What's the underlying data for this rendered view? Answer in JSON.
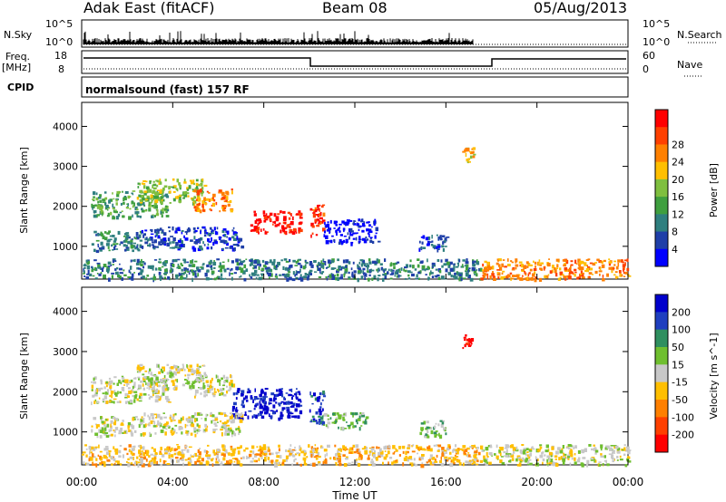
{
  "header": {
    "station": "Adak East (fitACF)",
    "beam": "Beam 08",
    "date": "05/Aug/2013"
  },
  "top_panels": {
    "nsky_label": "N.Sky",
    "nsky_ticks": [
      "10^5",
      "10^0"
    ],
    "nsearch_label": "N.Search",
    "nsearch_ticks": [
      "10^5",
      "10^0"
    ],
    "freq_label": "Freq.",
    "freq_unit": "[MHz]",
    "freq_ticks": [
      "18",
      "8"
    ],
    "nave_label": "Nave",
    "nave_ticks": [
      "60",
      "0"
    ],
    "cpid_label": "CPID",
    "cpid_value": "normalsound (fast) 157 RF"
  },
  "time_axis": {
    "label": "Time UT",
    "ticks": [
      "00:00",
      "04:00",
      "08:00",
      "12:00",
      "16:00",
      "20:00",
      "00:00"
    ]
  },
  "colors": {
    "power": [
      "#0000ff",
      "#1f3fa8",
      "#2f7f7f",
      "#3f9f3f",
      "#7fbf3f",
      "#ffbf00",
      "#ff8000",
      "#ff4000",
      "#ff0000"
    ],
    "velocity": [
      "#0000cc",
      "#1f3fbf",
      "#2f8f5f",
      "#6fbf2f",
      "#c8c8c8",
      "#ffbf00",
      "#ff8000",
      "#ff4000",
      "#ff0000"
    ]
  },
  "chart_data": [
    {
      "type": "heatmap",
      "name": "power",
      "title": "",
      "xlabel": "",
      "ylabel": "Slant Range [km]",
      "xlim": [
        0,
        24
      ],
      "ylim": [
        180,
        4600
      ],
      "y_ticks": [
        "1000",
        "2000",
        "3000",
        "4000"
      ],
      "colorbar": {
        "label": "Power [dB]",
        "ticks": [
          "4",
          "8",
          "12",
          "16",
          "20",
          "24",
          "28"
        ]
      },
      "regions": [
        {
          "t0": 0.4,
          "t1": 2.6,
          "r0": 900,
          "r1": 1400,
          "level": 2
        },
        {
          "t0": 0.4,
          "t1": 3.8,
          "r0": 1750,
          "r1": 2400,
          "level": 3
        },
        {
          "t0": 2.4,
          "t1": 5.4,
          "r0": 2100,
          "r1": 2700,
          "level": 4
        },
        {
          "t0": 4.9,
          "t1": 6.6,
          "r0": 1900,
          "r1": 2450,
          "level": 6
        },
        {
          "t0": 7.4,
          "t1": 9.6,
          "r0": 1350,
          "r1": 1900,
          "level": 8
        },
        {
          "t0": 10.0,
          "t1": 10.6,
          "r0": 1250,
          "r1": 2050,
          "level": 7
        },
        {
          "t0": 2.6,
          "t1": 7.0,
          "r0": 950,
          "r1": 1500,
          "level": 1
        },
        {
          "t0": 10.6,
          "t1": 13.0,
          "r0": 1100,
          "r1": 1700,
          "level": 0
        },
        {
          "t0": 14.8,
          "t1": 16.0,
          "r0": 900,
          "r1": 1300,
          "level": 1
        },
        {
          "t0": 16.7,
          "t1": 17.2,
          "r0": 3100,
          "r1": 3500,
          "level": 5
        },
        {
          "t0": 0.0,
          "t1": 17.5,
          "r0": 200,
          "r1": 700,
          "level": 2
        },
        {
          "t0": 17.5,
          "t1": 24.0,
          "r0": 200,
          "r1": 700,
          "level": 6
        }
      ]
    },
    {
      "type": "heatmap",
      "name": "velocity",
      "title": "",
      "xlabel": "Time UT",
      "ylabel": "Slant Range [km]",
      "xlim": [
        0,
        24
      ],
      "ylim": [
        180,
        4600
      ],
      "y_ticks": [
        "1000",
        "2000",
        "3000",
        "4000"
      ],
      "colorbar": {
        "label": "Velocity [m s^-1]",
        "ticks": [
          "200",
          "100",
          "50",
          "15",
          "-15",
          "-50",
          "-100",
          "-200"
        ]
      },
      "regions": [
        {
          "t0": 0.4,
          "t1": 2.6,
          "r0": 900,
          "r1": 1400,
          "level": 4
        },
        {
          "t0": 0.4,
          "t1": 3.8,
          "r0": 1750,
          "r1": 2400,
          "level": 4
        },
        {
          "t0": 2.4,
          "t1": 5.4,
          "r0": 2100,
          "r1": 2700,
          "level": 4
        },
        {
          "t0": 4.9,
          "t1": 6.6,
          "r0": 1900,
          "r1": 2450,
          "level": 4
        },
        {
          "t0": 6.6,
          "t1": 9.6,
          "r0": 1350,
          "r1": 2100,
          "level": 0
        },
        {
          "t0": 10.0,
          "t1": 10.6,
          "r0": 1250,
          "r1": 2050,
          "level": 1
        },
        {
          "t0": 2.6,
          "t1": 7.0,
          "r0": 950,
          "r1": 1500,
          "level": 4
        },
        {
          "t0": 10.6,
          "t1": 12.5,
          "r0": 1100,
          "r1": 1500,
          "level": 3
        },
        {
          "t0": 14.8,
          "t1": 16.0,
          "r0": 900,
          "r1": 1300,
          "level": 3
        },
        {
          "t0": 16.7,
          "t1": 17.2,
          "r0": 3100,
          "r1": 3500,
          "level": 8
        },
        {
          "t0": 0.0,
          "t1": 17.5,
          "r0": 200,
          "r1": 700,
          "level": 5
        },
        {
          "t0": 17.5,
          "t1": 24.0,
          "r0": 200,
          "r1": 700,
          "level": 4
        }
      ]
    }
  ]
}
